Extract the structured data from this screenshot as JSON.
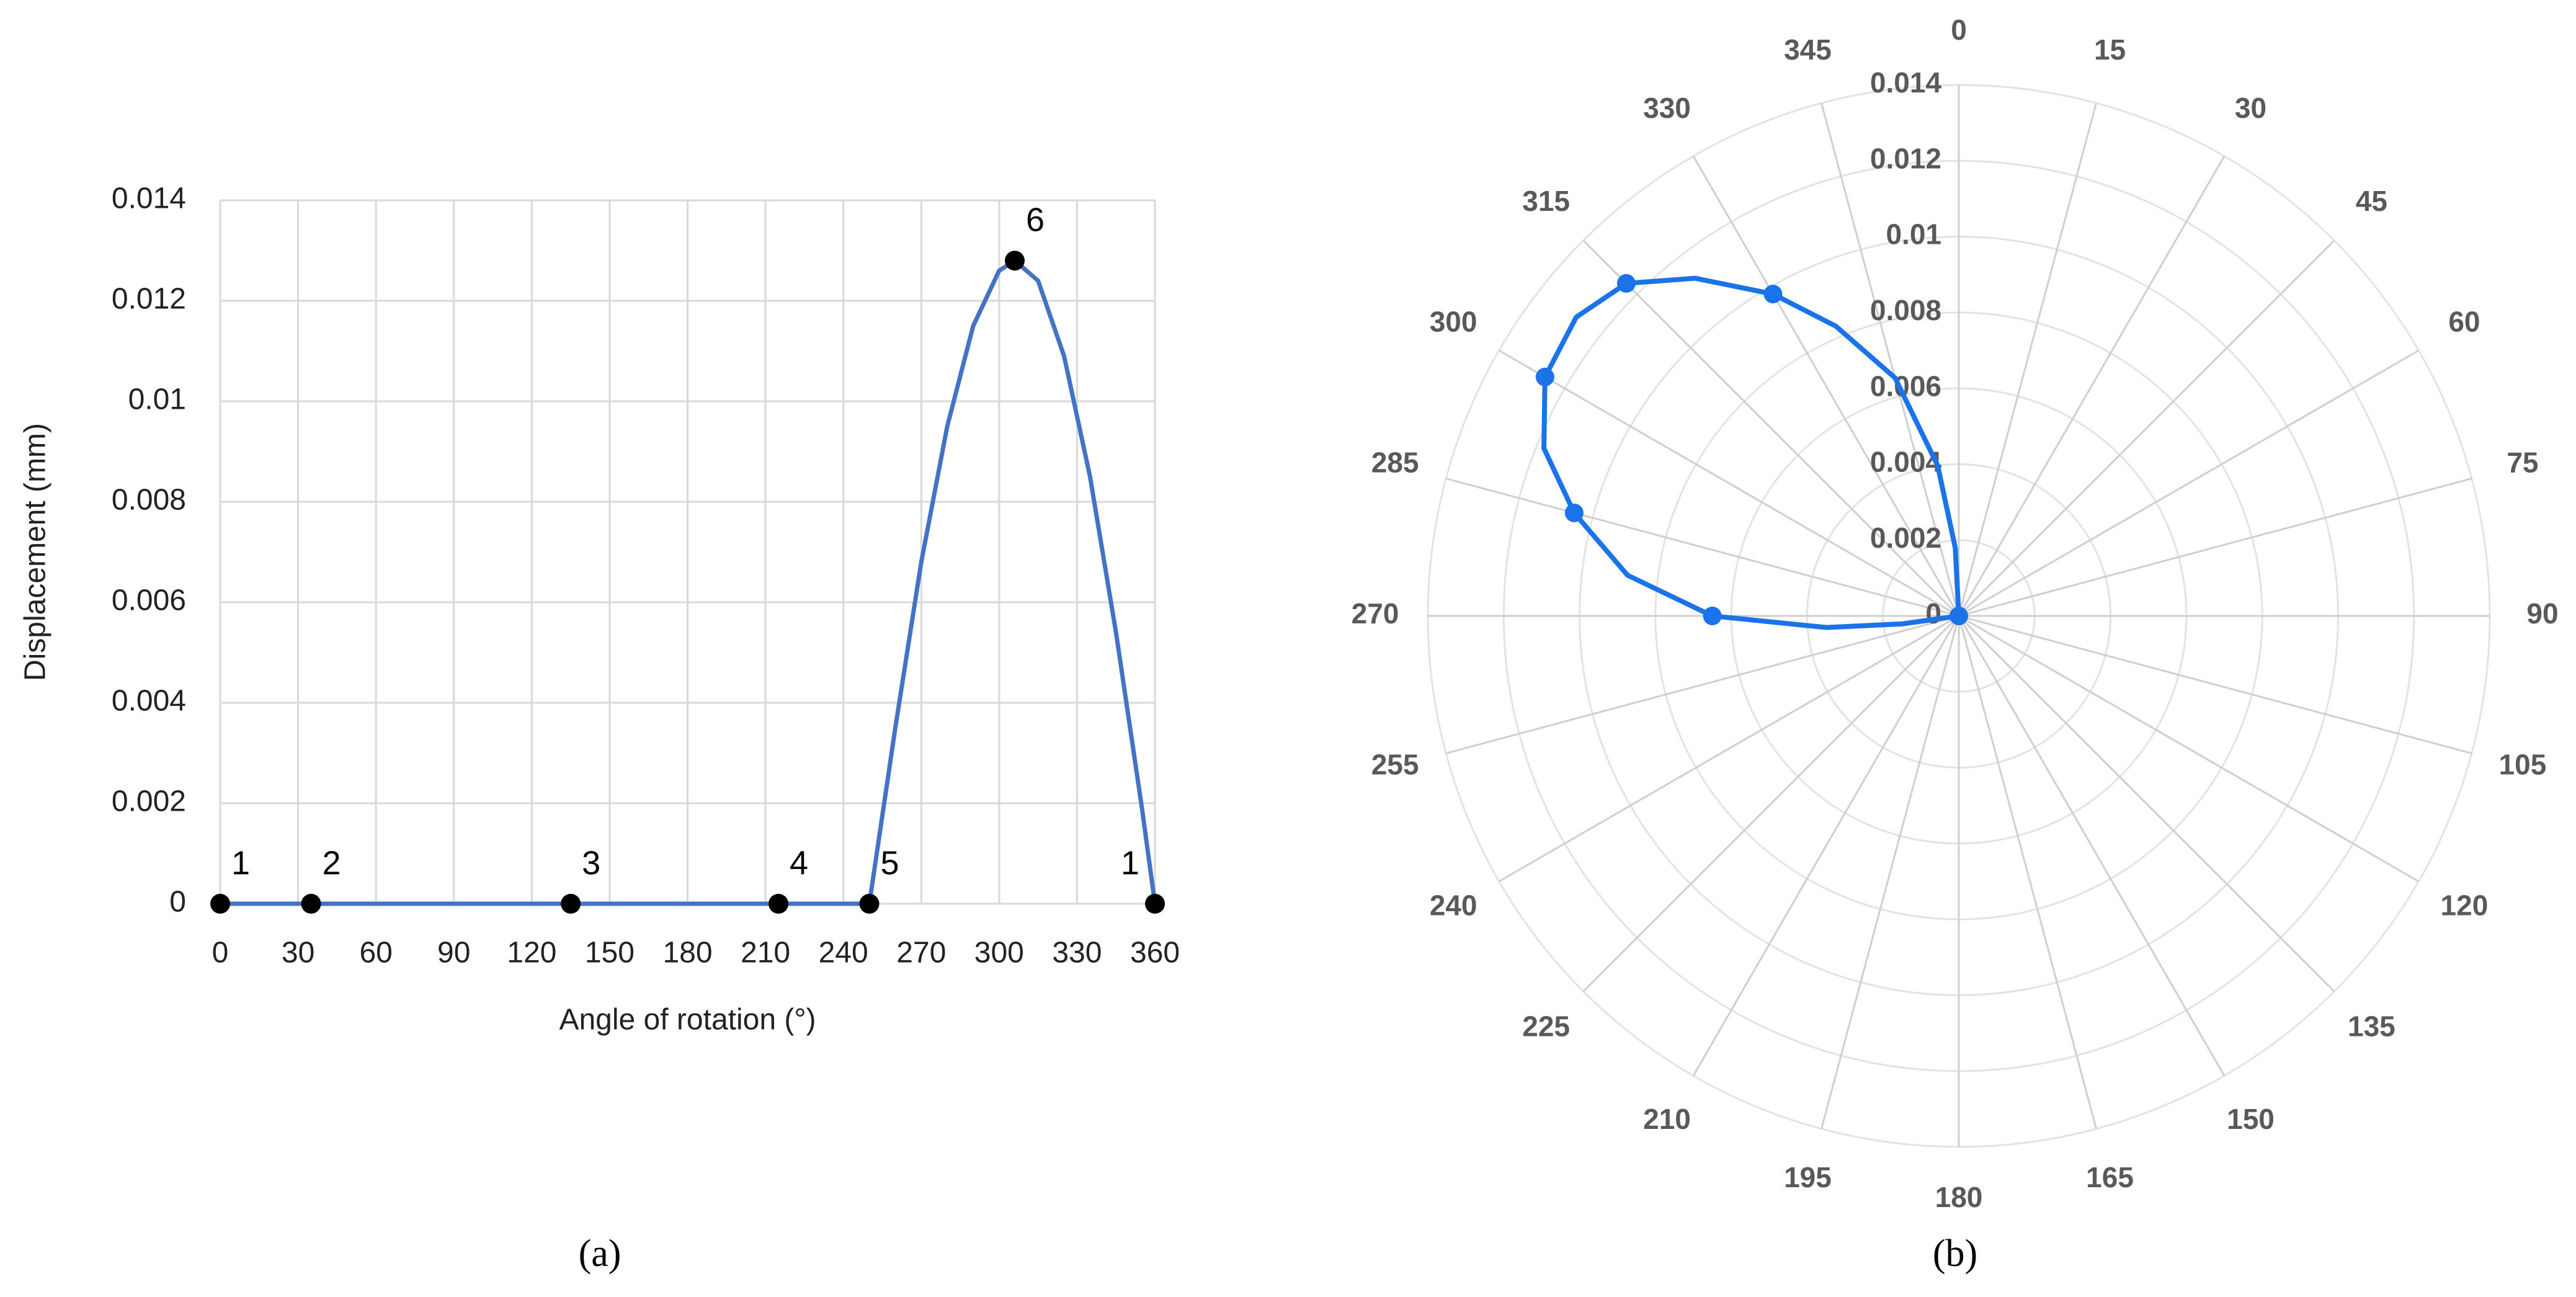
{
  "chart_data": [
    {
      "type": "line",
      "caption": "(a)",
      "x_label": "Angle of rotation (°)",
      "y_label": "Displacement (mm)",
      "xlim": [
        0,
        360
      ],
      "xticks": [
        0,
        30,
        60,
        90,
        120,
        150,
        180,
        210,
        240,
        270,
        300,
        330,
        360
      ],
      "ylim": [
        0,
        0.014
      ],
      "yticks": [
        0,
        0.002,
        0.004,
        0.006,
        0.008,
        0.01,
        0.012,
        0.014
      ],
      "grid": true,
      "series": [
        {
          "color": "#4472c4",
          "marker": false,
          "line": true,
          "x": [
            0,
            35,
            135,
            215,
            250,
            260,
            270,
            280,
            290,
            300,
            306,
            315,
            325,
            335,
            345,
            355,
            360
          ],
          "values": [
            0,
            0,
            0,
            0,
            0,
            0.0035,
            0.0068,
            0.0095,
            0.0115,
            0.0126,
            0.0128,
            0.0124,
            0.0109,
            0.0085,
            0.0054,
            0.0019,
            0
          ]
        },
        {
          "color": "#000000",
          "marker": true,
          "line": false,
          "x": [
            0,
            35,
            135,
            215,
            250,
            306,
            360
          ],
          "values": [
            0,
            0,
            0,
            0,
            0,
            0.0128,
            0
          ],
          "point_labels": [
            "1",
            "2",
            "3",
            "4",
            "5",
            "6",
            "1"
          ]
        }
      ]
    },
    {
      "type": "polar",
      "caption": "(b)",
      "theta_ticks": [
        0,
        15,
        30,
        45,
        60,
        75,
        90,
        105,
        120,
        135,
        150,
        165,
        180,
        195,
        210,
        225,
        240,
        255,
        270,
        285,
        300,
        315,
        330,
        345
      ],
      "rlim": [
        0,
        0.014
      ],
      "rticks": [
        0,
        0.002,
        0.004,
        0.006,
        0.008,
        0.01,
        0.012,
        0.014
      ],
      "grid": true,
      "series": [
        {
          "color": "#1a73e8",
          "marker": false,
          "line": true,
          "theta": [
            255,
            262,
            265,
            270,
            277,
            285,
            292,
            300,
            308,
            315,
            322,
            330,
            337,
            345,
            352,
            357,
            360
          ],
          "values": [
            0,
            0.0015,
            0.0035,
            0.0065,
            0.0088,
            0.0105,
            0.0118,
            0.0126,
            0.0128,
            0.0124,
            0.0113,
            0.0098,
            0.0083,
            0.0065,
            0.004,
            0.0018,
            0
          ]
        },
        {
          "color": "#1a73e8",
          "marker": true,
          "line": false,
          "theta": [
            0,
            270,
            285,
            300,
            315,
            330
          ],
          "values": [
            0,
            0.0065,
            0.0105,
            0.0126,
            0.0124,
            0.0098
          ]
        }
      ]
    }
  ]
}
